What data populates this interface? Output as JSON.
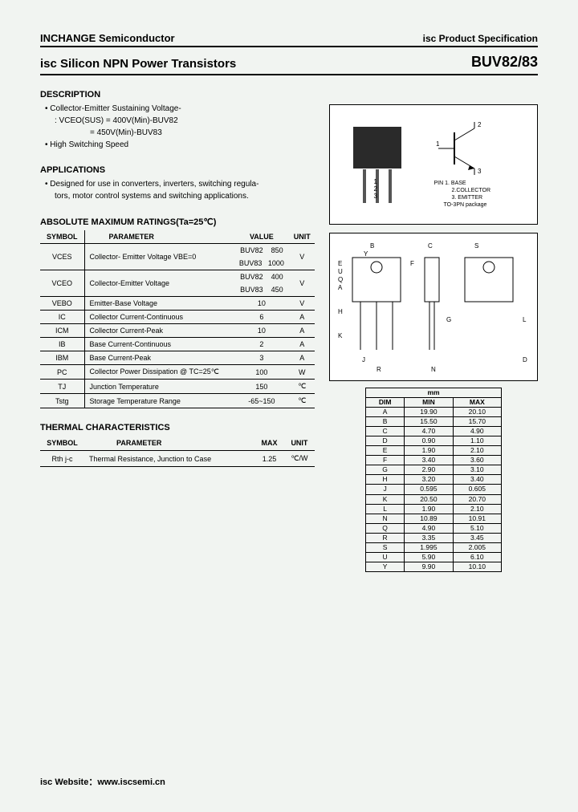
{
  "company": "INCHANGE Semiconductor",
  "spec_label": "isc Product Specification",
  "product_title": "isc Silicon NPN Power Transistors",
  "part_number": "BUV82/83",
  "sections": {
    "description_title": "DESCRIPTION",
    "desc_b1": "Collector-Emitter Sustaining Voltage-",
    "desc_sub1": ": VCEO(SUS) = 400V(Min)-BUV82",
    "desc_sub2": "= 450V(Min)-BUV83",
    "desc_b2": "High Switching Speed",
    "applications_title": "APPLICATIONS",
    "app_b1": "Designed for use in converters, inverters, switching regula-",
    "app_b2_cont": "tors, motor control systems and switching applications.",
    "ratings_title": "ABSOLUTE MAXIMUM RATINGS(Ta=25℃)",
    "thermal_title": "THERMAL CHARACTERISTICS"
  },
  "ratings_headers": {
    "symbol": "SYMBOL",
    "param": "PARAMETER",
    "value": "VALUE",
    "unit": "UNIT"
  },
  "ratings": [
    {
      "sym": "VCES",
      "param": "Collector- Emitter Voltage   VBE=0",
      "sub1": "BUV82",
      "val1": "850",
      "sub2": "BUV83",
      "val2": "1000",
      "unit": "V"
    },
    {
      "sym": "VCEO",
      "param": "Collector-Emitter Voltage",
      "sub1": "BUV82",
      "val1": "400",
      "sub2": "BUV83",
      "val2": "450",
      "unit": "V"
    },
    {
      "sym": "VEBO",
      "param": "Emitter-Base Voltage",
      "val": "10",
      "unit": "V"
    },
    {
      "sym": "IC",
      "param": "Collector Current-Continuous",
      "val": "6",
      "unit": "A"
    },
    {
      "sym": "ICM",
      "param": "Collector Current-Peak",
      "val": "10",
      "unit": "A"
    },
    {
      "sym": "IB",
      "param": "Base Current-Continuous",
      "val": "2",
      "unit": "A"
    },
    {
      "sym": "IBM",
      "param": "Base Current-Peak",
      "val": "3",
      "unit": "A"
    },
    {
      "sym": "PC",
      "param": "Collector Power Dissipation @ TC=25℃",
      "val": "100",
      "unit": "W"
    },
    {
      "sym": "TJ",
      "param": "Junction Temperature",
      "val": "150",
      "unit": "℃"
    },
    {
      "sym": "Tstg",
      "param": "Storage Temperature Range",
      "val": "-65~150",
      "unit": "℃"
    }
  ],
  "thermal_headers": {
    "symbol": "SYMBOL",
    "param": "PARAMETER",
    "max": "MAX",
    "unit": "UNIT"
  },
  "thermal": [
    {
      "sym": "Rth j-c",
      "param": "Thermal Resistance, Junction to Case",
      "max": "1.25",
      "unit": "℃/W"
    }
  ],
  "pin_info": {
    "title": "PIN  1. BASE",
    "p2": "2.COLLECTOR",
    "p3": "3. EMITTER",
    "pkg": "TO-3PN package"
  },
  "pin_labels_img": "1  2  3",
  "dim_header": {
    "mm": "mm",
    "dim": "DIM",
    "min": "MIN",
    "max": "MAX"
  },
  "dims": [
    {
      "d": "A",
      "min": "19.90",
      "max": "20.10"
    },
    {
      "d": "B",
      "min": "15.50",
      "max": "15.70"
    },
    {
      "d": "C",
      "min": "4.70",
      "max": "4.90"
    },
    {
      "d": "D",
      "min": "0.90",
      "max": "1.10"
    },
    {
      "d": "E",
      "min": "1.90",
      "max": "2.10"
    },
    {
      "d": "F",
      "min": "3.40",
      "max": "3.60"
    },
    {
      "d": "G",
      "min": "2.90",
      "max": "3.10"
    },
    {
      "d": "H",
      "min": "3.20",
      "max": "3.40"
    },
    {
      "d": "J",
      "min": "0.595",
      "max": "0.605"
    },
    {
      "d": "K",
      "min": "20.50",
      "max": "20.70"
    },
    {
      "d": "L",
      "min": "1.90",
      "max": "2.10"
    },
    {
      "d": "N",
      "min": "10.89",
      "max": "10.91"
    },
    {
      "d": "Q",
      "min": "4.90",
      "max": "5.10"
    },
    {
      "d": "R",
      "min": "3.35",
      "max": "3.45"
    },
    {
      "d": "S",
      "min": "1.995",
      "max": "2.005"
    },
    {
      "d": "U",
      "min": "5.90",
      "max": "6.10"
    },
    {
      "d": "Y",
      "min": "9.90",
      "max": "10.10"
    }
  ],
  "footer": "isc Website：www.iscsemi.cn"
}
